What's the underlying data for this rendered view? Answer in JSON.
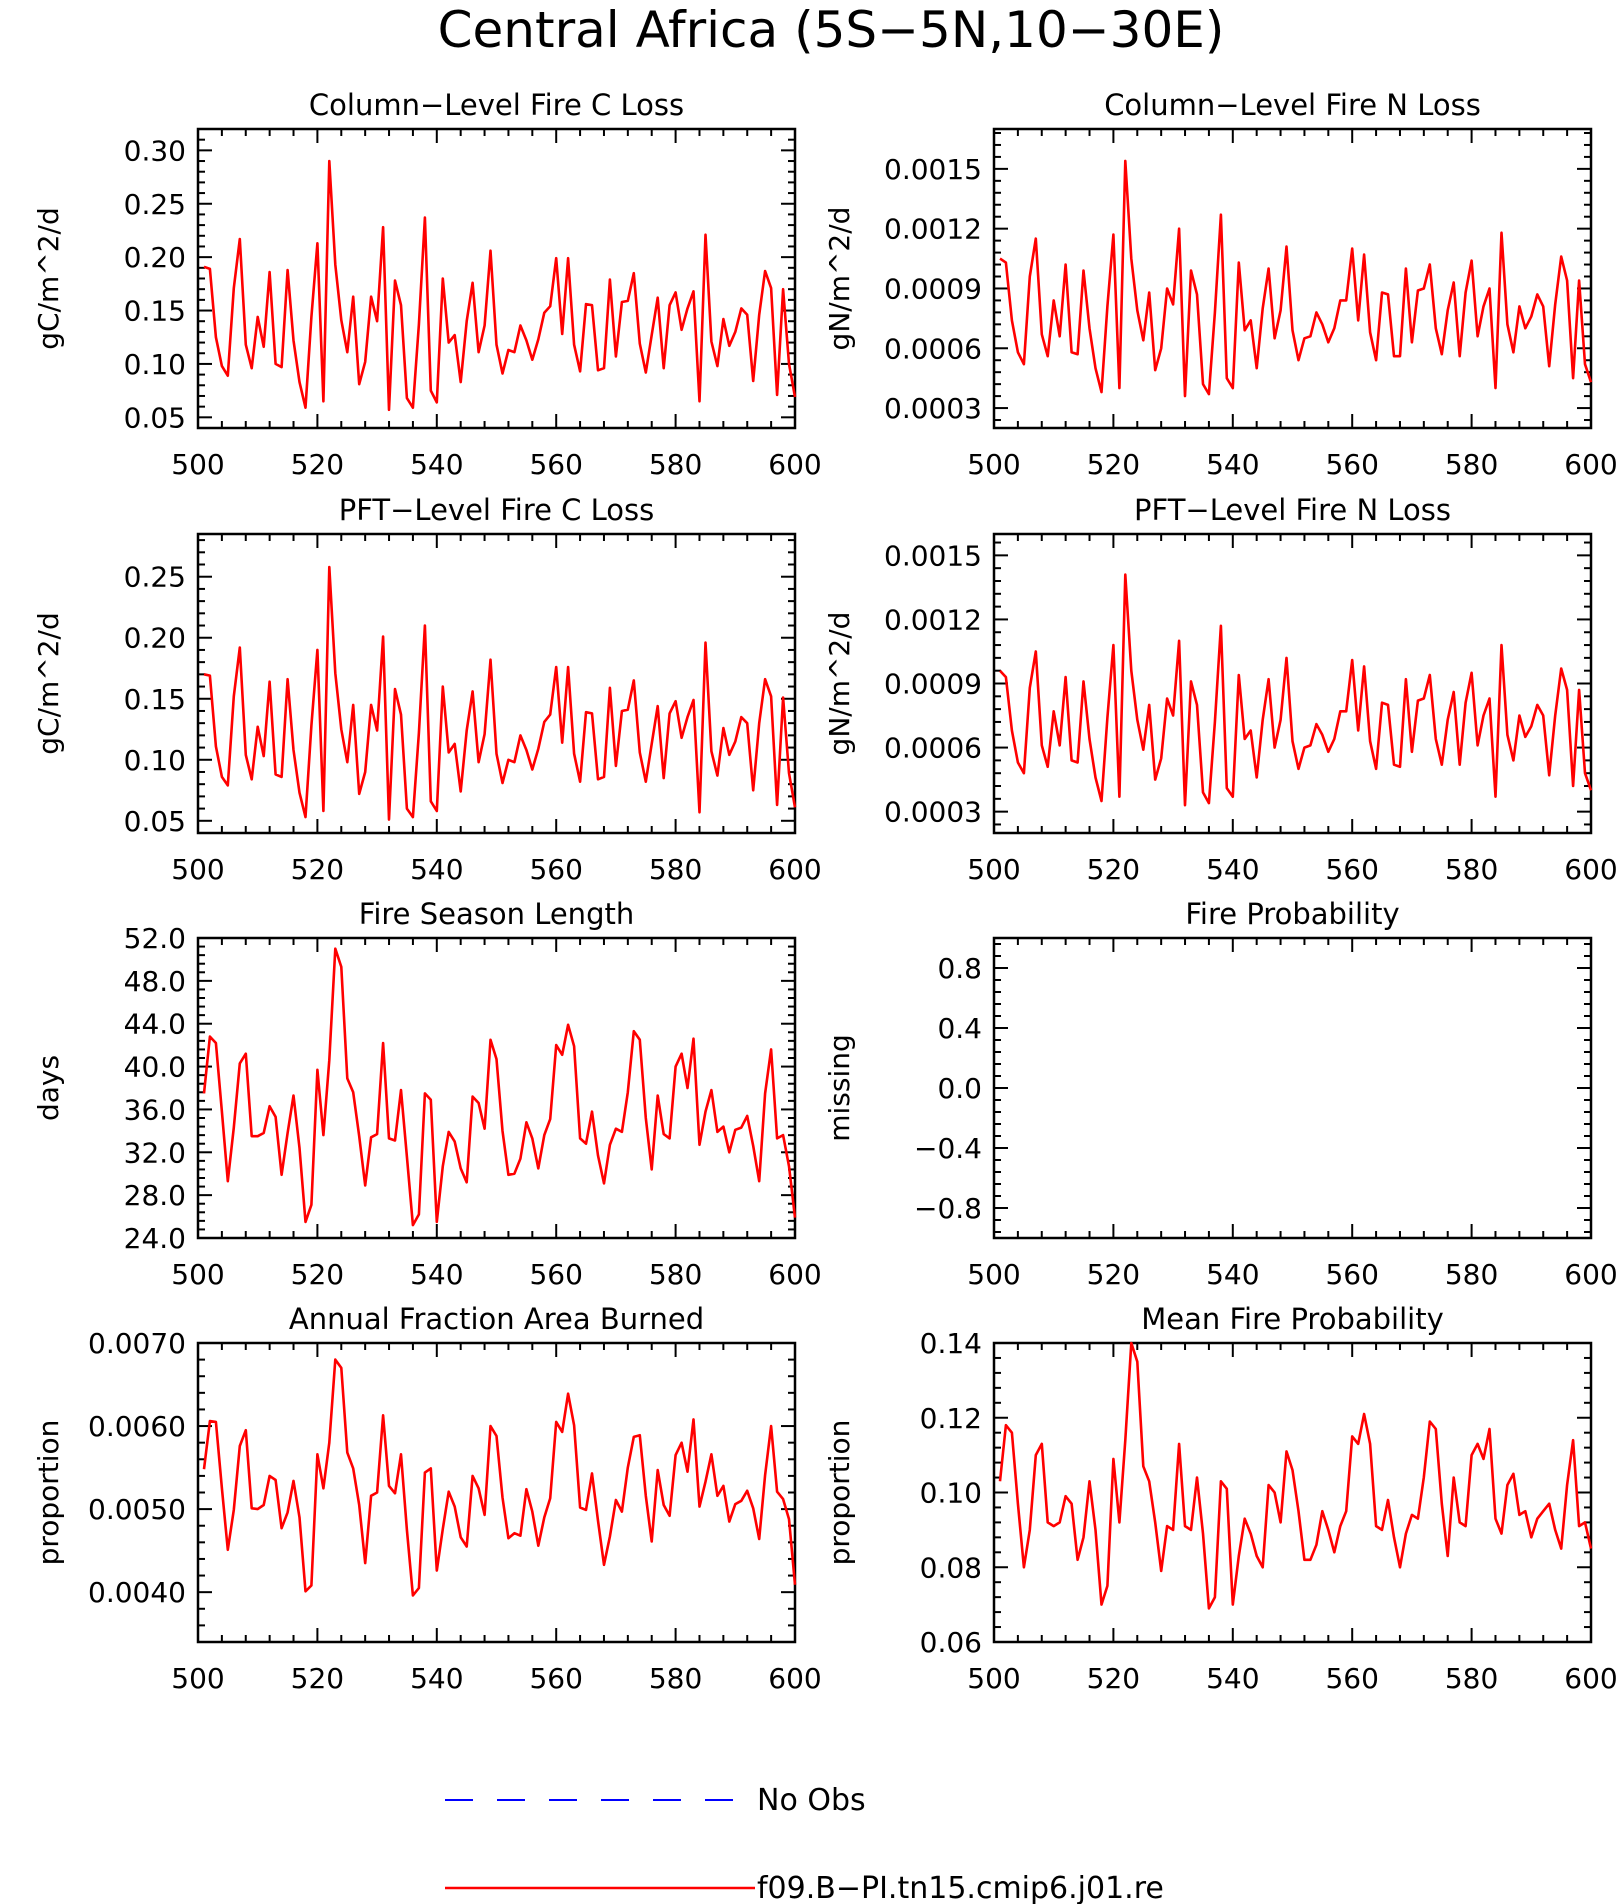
{
  "figure_title": "Central Africa (5S−5N,10−30E)",
  "colors": {
    "model": "#ff0000",
    "obs": "#0000ff",
    "axis": "#000000"
  },
  "legend": {
    "items": [
      {
        "label": "No Obs",
        "color": "#0000ff",
        "style": "dashed"
      },
      {
        "label": "f09.B−PI.tn15.cmip6.j01.re",
        "color": "#ff0000",
        "style": "solid"
      }
    ]
  },
  "chart_data": [
    {
      "type": "line",
      "title": "Column−Level Fire C Loss",
      "ylabel": "gC/m^2/d",
      "xlim": [
        500,
        600
      ],
      "ylim": [
        0.04,
        0.32
      ],
      "xticks": [
        500,
        520,
        540,
        560,
        580,
        600
      ],
      "yticks": [
        0.05,
        0.1,
        0.15,
        0.2,
        0.25,
        0.3
      ],
      "ytick_labels": [
        "0.05",
        "0.10",
        "0.15",
        "0.20",
        "0.25",
        "0.30"
      ],
      "series": [
        {
          "x_start": 501,
          "values": [
            0.191,
            0.189,
            0.125,
            0.098,
            0.089,
            0.171,
            0.217,
            0.118,
            0.096,
            0.144,
            0.116,
            0.186,
            0.1,
            0.097,
            0.188,
            0.122,
            0.083,
            0.059,
            0.144,
            0.213,
            0.065,
            0.29,
            0.193,
            0.141,
            0.111,
            0.163,
            0.081,
            0.102,
            0.163,
            0.14,
            0.228,
            0.057,
            0.178,
            0.155,
            0.068,
            0.059,
            0.137,
            0.237,
            0.075,
            0.064,
            0.18,
            0.12,
            0.127,
            0.083,
            0.14,
            0.176,
            0.111,
            0.136,
            0.206,
            0.118,
            0.091,
            0.113,
            0.111,
            0.136,
            0.122,
            0.104,
            0.123,
            0.148,
            0.154,
            0.199,
            0.128,
            0.199,
            0.118,
            0.093,
            0.156,
            0.155,
            0.094,
            0.096,
            0.179,
            0.107,
            0.158,
            0.159,
            0.185,
            0.119,
            0.092,
            0.127,
            0.162,
            0.096,
            0.155,
            0.167,
            0.132,
            0.152,
            0.168,
            0.065,
            0.221,
            0.121,
            0.098,
            0.142,
            0.117,
            0.13,
            0.152,
            0.146,
            0.084,
            0.146,
            0.187,
            0.171,
            0.071,
            0.17,
            0.1,
            0.069
          ]
        }
      ]
    },
    {
      "type": "line",
      "title": "Column−Level Fire N Loss",
      "ylabel": "gN/m^2/d",
      "xlim": [
        500,
        600
      ],
      "ylim": [
        0.0002,
        0.0017
      ],
      "xticks": [
        500,
        520,
        540,
        560,
        580,
        600
      ],
      "yticks": [
        0.0003,
        0.0006,
        0.0009,
        0.0012,
        0.0015
      ],
      "ytick_labels": [
        "0.0003",
        "0.0006",
        "0.0009",
        "0.0012",
        "0.0015"
      ],
      "series": [
        {
          "x_start": 501,
          "values": [
            0.00105,
            0.00103,
            0.00074,
            0.00058,
            0.00052,
            0.00096,
            0.00115,
            0.00067,
            0.00056,
            0.00084,
            0.00066,
            0.00102,
            0.00058,
            0.00057,
            0.00099,
            0.0007,
            0.0005,
            0.00038,
            0.00081,
            0.00117,
            0.0004,
            0.00154,
            0.00105,
            0.00079,
            0.00064,
            0.00088,
            0.00049,
            0.0006,
            0.0009,
            0.00082,
            0.0012,
            0.00036,
            0.00099,
            0.00087,
            0.00042,
            0.00037,
            0.00078,
            0.00127,
            0.00045,
            0.0004,
            0.00103,
            0.00069,
            0.00074,
            0.0005,
            0.0008,
            0.001,
            0.00065,
            0.00079,
            0.00111,
            0.00069,
            0.00054,
            0.00065,
            0.00066,
            0.00078,
            0.00072,
            0.00063,
            0.0007,
            0.00084,
            0.00084,
            0.0011,
            0.00074,
            0.00107,
            0.00068,
            0.00054,
            0.00088,
            0.00087,
            0.00056,
            0.00056,
            0.001,
            0.00063,
            0.00089,
            0.0009,
            0.00102,
            0.0007,
            0.00057,
            0.00079,
            0.00093,
            0.00056,
            0.00088,
            0.00104,
            0.00066,
            0.00081,
            0.0009,
            0.0004,
            0.00118,
            0.00072,
            0.00058,
            0.00081,
            0.0007,
            0.00076,
            0.00087,
            0.00081,
            0.00051,
            0.00082,
            0.00106,
            0.00094,
            0.00045,
            0.00094,
            0.00052,
            0.00043
          ]
        }
      ]
    },
    {
      "type": "line",
      "title": "PFT−Level Fire C Loss",
      "ylabel": "gC/m^2/d",
      "xlim": [
        500,
        600
      ],
      "ylim": [
        0.04,
        0.285
      ],
      "xticks": [
        500,
        520,
        540,
        560,
        580,
        600
      ],
      "yticks": [
        0.05,
        0.1,
        0.15,
        0.2,
        0.25
      ],
      "ytick_labels": [
        "0.05",
        "0.10",
        "0.15",
        "0.20",
        "0.25"
      ],
      "series": [
        {
          "x_start": 501,
          "values": [
            0.17,
            0.169,
            0.111,
            0.086,
            0.079,
            0.152,
            0.192,
            0.104,
            0.084,
            0.127,
            0.103,
            0.164,
            0.088,
            0.086,
            0.166,
            0.108,
            0.073,
            0.053,
            0.128,
            0.19,
            0.058,
            0.258,
            0.171,
            0.125,
            0.098,
            0.145,
            0.072,
            0.09,
            0.145,
            0.124,
            0.201,
            0.051,
            0.158,
            0.137,
            0.06,
            0.053,
            0.122,
            0.21,
            0.066,
            0.058,
            0.16,
            0.106,
            0.113,
            0.074,
            0.124,
            0.156,
            0.098,
            0.121,
            0.182,
            0.105,
            0.081,
            0.1,
            0.098,
            0.12,
            0.108,
            0.092,
            0.109,
            0.131,
            0.137,
            0.176,
            0.114,
            0.176,
            0.105,
            0.082,
            0.139,
            0.138,
            0.084,
            0.086,
            0.159,
            0.095,
            0.14,
            0.141,
            0.165,
            0.106,
            0.082,
            0.113,
            0.144,
            0.085,
            0.138,
            0.148,
            0.118,
            0.135,
            0.149,
            0.057,
            0.196,
            0.107,
            0.087,
            0.126,
            0.104,
            0.115,
            0.135,
            0.13,
            0.075,
            0.13,
            0.166,
            0.152,
            0.063,
            0.151,
            0.089,
            0.061
          ]
        }
      ]
    },
    {
      "type": "line",
      "title": "PFT−Level Fire N Loss",
      "ylabel": "gN/m^2/d",
      "xlim": [
        500,
        600
      ],
      "ylim": [
        0.0002,
        0.0016
      ],
      "xticks": [
        500,
        520,
        540,
        560,
        580,
        600
      ],
      "yticks": [
        0.0003,
        0.0006,
        0.0009,
        0.0012,
        0.0015
      ],
      "ytick_labels": [
        "0.0003",
        "0.0006",
        "0.0009",
        "0.0012",
        "0.0015"
      ],
      "series": [
        {
          "x_start": 501,
          "values": [
            0.00096,
            0.00093,
            0.00068,
            0.00053,
            0.00048,
            0.00088,
            0.00105,
            0.00061,
            0.00051,
            0.00077,
            0.00061,
            0.00093,
            0.00054,
            0.00053,
            0.00091,
            0.00064,
            0.00046,
            0.00035,
            0.00074,
            0.00108,
            0.00037,
            0.00141,
            0.00096,
            0.00073,
            0.00059,
            0.0008,
            0.00045,
            0.00055,
            0.00083,
            0.00075,
            0.0011,
            0.00033,
            0.00091,
            0.0008,
            0.00039,
            0.00034,
            0.00072,
            0.00117,
            0.00041,
            0.00037,
            0.00094,
            0.00064,
            0.00068,
            0.00046,
            0.00073,
            0.00092,
            0.0006,
            0.00073,
            0.00102,
            0.00063,
            0.0005,
            0.0006,
            0.00061,
            0.00071,
            0.00066,
            0.00058,
            0.00064,
            0.00077,
            0.00077,
            0.00101,
            0.00068,
            0.00098,
            0.00063,
            0.0005,
            0.00081,
            0.0008,
            0.00052,
            0.00051,
            0.00092,
            0.00058,
            0.00082,
            0.00083,
            0.00094,
            0.00064,
            0.00052,
            0.00073,
            0.00086,
            0.00052,
            0.00081,
            0.00095,
            0.00061,
            0.00075,
            0.00083,
            0.00037,
            0.00108,
            0.00066,
            0.00054,
            0.00075,
            0.00065,
            0.0007,
            0.0008,
            0.00075,
            0.00047,
            0.00075,
            0.00097,
            0.00087,
            0.00042,
            0.00087,
            0.00048,
            0.0004
          ]
        }
      ]
    },
    {
      "type": "line",
      "title": "Fire Season Length",
      "ylabel": "days",
      "xlim": [
        500,
        600
      ],
      "ylim": [
        24,
        52
      ],
      "xticks": [
        500,
        520,
        540,
        560,
        580,
        600
      ],
      "yticks": [
        24,
        28,
        32,
        36,
        40,
        44,
        48,
        52
      ],
      "ytick_labels": [
        "24.0",
        "28.0",
        "32.0",
        "36.0",
        "40.0",
        "44.0",
        "48.0",
        "52.0"
      ],
      "series": [
        {
          "x_start": 501,
          "values": [
            37.5,
            42.8,
            42.2,
            35.8,
            29.3,
            34.3,
            40.3,
            41.2,
            33.5,
            33.5,
            33.8,
            36.3,
            35.3,
            29.9,
            33.8,
            37.3,
            32.4,
            25.5,
            27.1,
            39.7,
            33.6,
            40.6,
            51.0,
            49.3,
            38.9,
            37.6,
            33.5,
            28.9,
            33.4,
            33.7,
            42.2,
            33.3,
            33.1,
            37.8,
            31.6,
            25.2,
            26.2,
            37.5,
            36.9,
            25.5,
            30.7,
            33.9,
            33.0,
            30.5,
            29.2,
            37.2,
            36.6,
            34.2,
            42.5,
            40.7,
            34.0,
            29.9,
            30.0,
            31.4,
            34.8,
            33.3,
            30.5,
            33.6,
            35.1,
            42.0,
            41.1,
            43.9,
            41.9,
            33.3,
            32.8,
            35.8,
            31.7,
            29.1,
            32.7,
            34.2,
            33.9,
            37.6,
            43.3,
            42.5,
            35.2,
            30.4,
            37.3,
            33.7,
            33.3,
            40.0,
            41.2,
            38.0,
            42.6,
            32.7,
            35.8,
            37.8,
            33.9,
            34.4,
            32.0,
            34.1,
            34.3,
            35.4,
            32.6,
            29.3,
            37.5,
            41.6,
            33.3,
            33.6,
            30.7,
            25.9
          ]
        }
      ]
    },
    {
      "type": "line",
      "title": "Fire Probability",
      "ylabel": "missing",
      "xlim": [
        500,
        600
      ],
      "ylim": [
        -1.0,
        1.0
      ],
      "xticks": [
        500,
        520,
        540,
        560,
        580,
        600
      ],
      "yticks": [
        -0.8,
        -0.4,
        0.0,
        0.4,
        0.8
      ],
      "ytick_labels": [
        "−0.8",
        "−0.4",
        "0.0",
        "0.4",
        "0.8"
      ],
      "series": []
    },
    {
      "type": "line",
      "title": "Annual Fraction Area Burned",
      "ylabel": "proportion",
      "xlim": [
        500,
        600
      ],
      "ylim": [
        0.0034,
        0.007
      ],
      "xticks": [
        500,
        520,
        540,
        560,
        580,
        600
      ],
      "yticks": [
        0.004,
        0.005,
        0.006,
        0.007
      ],
      "ytick_labels": [
        "0.0040",
        "0.0050",
        "0.0060",
        "0.0070"
      ],
      "series": [
        {
          "x_start": 501,
          "values": [
            0.00548,
            0.00606,
            0.00605,
            0.00525,
            0.00451,
            0.00499,
            0.00576,
            0.00595,
            0.00501,
            0.005,
            0.00505,
            0.0054,
            0.00535,
            0.00477,
            0.00496,
            0.00534,
            0.0049,
            0.00401,
            0.00408,
            0.00566,
            0.00525,
            0.0058,
            0.0068,
            0.0067,
            0.00568,
            0.00549,
            0.00505,
            0.00435,
            0.00516,
            0.0052,
            0.00613,
            0.00528,
            0.00519,
            0.00566,
            0.00475,
            0.00396,
            0.00405,
            0.00544,
            0.00549,
            0.00426,
            0.00476,
            0.00521,
            0.00503,
            0.00466,
            0.00455,
            0.0054,
            0.00525,
            0.00493,
            0.006,
            0.00588,
            0.00514,
            0.00465,
            0.00471,
            0.00468,
            0.00524,
            0.00497,
            0.00456,
            0.0049,
            0.00513,
            0.00605,
            0.00593,
            0.00639,
            0.00601,
            0.00502,
            0.00499,
            0.00543,
            0.00486,
            0.00433,
            0.00467,
            0.00511,
            0.00497,
            0.0055,
            0.00587,
            0.00589,
            0.00516,
            0.00461,
            0.00547,
            0.00505,
            0.00492,
            0.00565,
            0.0058,
            0.00545,
            0.00608,
            0.00503,
            0.00533,
            0.00566,
            0.00516,
            0.00528,
            0.00485,
            0.00506,
            0.0051,
            0.00522,
            0.00501,
            0.00464,
            0.00541,
            0.006,
            0.00521,
            0.00512,
            0.00488,
            0.00409
          ]
        }
      ]
    },
    {
      "type": "line",
      "title": "Mean Fire Probability",
      "ylabel": "proportion",
      "xlim": [
        500,
        600
      ],
      "ylim": [
        0.06,
        0.14
      ],
      "xticks": [
        500,
        520,
        540,
        560,
        580,
        600
      ],
      "yticks": [
        0.06,
        0.08,
        0.1,
        0.12,
        0.14
      ],
      "ytick_labels": [
        "0.06",
        "0.08",
        "0.10",
        "0.12",
        "0.14"
      ],
      "series": [
        {
          "x_start": 501,
          "values": [
            0.103,
            0.118,
            0.116,
            0.097,
            0.08,
            0.09,
            0.11,
            0.113,
            0.092,
            0.091,
            0.092,
            0.099,
            0.097,
            0.082,
            0.088,
            0.103,
            0.09,
            0.07,
            0.075,
            0.109,
            0.092,
            0.114,
            0.14,
            0.135,
            0.107,
            0.103,
            0.092,
            0.079,
            0.091,
            0.09,
            0.113,
            0.091,
            0.09,
            0.104,
            0.089,
            0.069,
            0.072,
            0.103,
            0.101,
            0.07,
            0.083,
            0.093,
            0.089,
            0.083,
            0.08,
            0.102,
            0.1,
            0.092,
            0.111,
            0.106,
            0.095,
            0.082,
            0.082,
            0.086,
            0.095,
            0.09,
            0.084,
            0.091,
            0.095,
            0.115,
            0.113,
            0.121,
            0.113,
            0.091,
            0.09,
            0.098,
            0.088,
            0.08,
            0.089,
            0.094,
            0.093,
            0.104,
            0.119,
            0.117,
            0.097,
            0.083,
            0.104,
            0.092,
            0.091,
            0.11,
            0.113,
            0.109,
            0.117,
            0.093,
            0.089,
            0.102,
            0.105,
            0.094,
            0.095,
            0.088,
            0.093,
            0.095,
            0.097,
            0.09,
            0.085,
            0.102,
            0.114,
            0.091,
            0.092,
            0.085
          ]
        }
      ]
    }
  ]
}
